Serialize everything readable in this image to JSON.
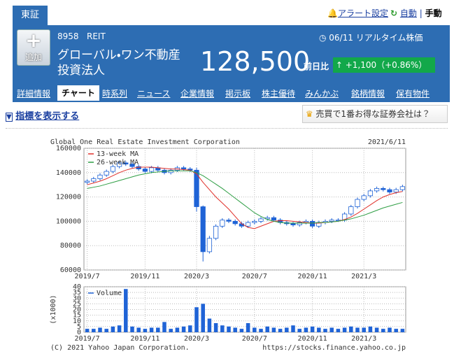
{
  "header": {
    "market": "東証",
    "alert": "アラート設定",
    "auto": "自動",
    "manual": "手動",
    "add": "追加",
    "code": "8958",
    "category": "REIT",
    "time": "06/11 リアルタイム株価",
    "name_line1": "グローバル・ワン不動産",
    "name_line2": "投資法人",
    "price": "128,500",
    "change_label": "前日比",
    "change": "+1,100（+0.86%）"
  },
  "tabs": [
    "詳細情報",
    "チャート",
    "時系列",
    "ニュース",
    "企業情報",
    "掲示板",
    "株主優待",
    "みんかぶ",
    "銘柄情報",
    "保有物件"
  ],
  "toolbar": {
    "indicator_link": "指標を表示する",
    "promo": "売買で1番お得な証券会社は？"
  },
  "footer": {
    "copyright": "(C) 2021 Yahoo Japan Corporation.",
    "url": "https://stocks.finance.yahoo.co.jp"
  },
  "chart_data": [
    {
      "type": "candlestick",
      "title": "Global One Real Estate Investment Corporation",
      "date_label": "2021/6/11",
      "categories": [
        "2019/7",
        null,
        null,
        null,
        null,
        null,
        null,
        null,
        null,
        "2019/11",
        null,
        null,
        null,
        null,
        null,
        null,
        null,
        "2020/3",
        null,
        null,
        null,
        null,
        null,
        null,
        null,
        null,
        "2020/7",
        null,
        null,
        null,
        null,
        null,
        null,
        null,
        null,
        "2020/11",
        null,
        null,
        null,
        null,
        null,
        null,
        null,
        "2021/3",
        null,
        null,
        null,
        null,
        null,
        null
      ],
      "open": [
        132000,
        133000,
        135000,
        138000,
        141000,
        145000,
        148000,
        147000,
        145000,
        143000,
        141000,
        144000,
        142000,
        140000,
        142000,
        144000,
        143000,
        142000,
        112000,
        75000,
        86000,
        96000,
        101000,
        100000,
        98000,
        96000,
        99000,
        100000,
        102000,
        103000,
        101000,
        99000,
        98000,
        97000,
        99000,
        100000,
        96000,
        99000,
        100000,
        101000,
        101000,
        106000,
        112000,
        118000,
        121000,
        125000,
        127000,
        126000,
        124000,
        126000
      ],
      "high": [
        134500,
        136500,
        139500,
        142500,
        146500,
        149500,
        149500,
        148500,
        146500,
        144500,
        145500,
        145500,
        143500,
        143500,
        145500,
        145500,
        144500,
        144000,
        113000,
        88000,
        97500,
        102500,
        102500,
        101500,
        99500,
        100500,
        101500,
        103500,
        104500,
        104500,
        102500,
        100500,
        99500,
        100500,
        101500,
        101500,
        100500,
        101500,
        102500,
        102500,
        107500,
        113500,
        119500,
        122500,
        126500,
        128500,
        128500,
        127500,
        127500,
        130000
      ],
      "low": [
        130500,
        131500,
        133500,
        136500,
        139500,
        143500,
        145500,
        143500,
        141500,
        139500,
        139500,
        140500,
        138500,
        138500,
        140500,
        141500,
        140500,
        108000,
        67000,
        73500,
        84500,
        94500,
        98500,
        96500,
        94500,
        94500,
        97500,
        98500,
        100500,
        99500,
        97500,
        96500,
        95500,
        95500,
        97500,
        94500,
        94500,
        97500,
        98500,
        99500,
        99500,
        104500,
        110500,
        116500,
        119500,
        123500,
        124500,
        122500,
        122500,
        124500
      ],
      "close": [
        133000,
        135000,
        138000,
        141000,
        145000,
        148000,
        147000,
        145000,
        143000,
        141000,
        144000,
        142000,
        140000,
        142000,
        144000,
        143000,
        142000,
        112000,
        75000,
        86000,
        96000,
        101000,
        100000,
        98000,
        96000,
        99000,
        100000,
        102000,
        103000,
        101000,
        99000,
        98000,
        97000,
        99000,
        100000,
        96000,
        99000,
        100000,
        101000,
        101000,
        106000,
        112000,
        118000,
        121000,
        125000,
        127000,
        126000,
        124000,
        126000,
        128500
      ],
      "up_color": "#ffffff",
      "down_color": "#1f63d6",
      "edge_color": "#1f63d6",
      "lines": [
        {
          "name": "13-week MA",
          "color": "#e0302a",
          "values": [
            130000,
            131500,
            133000,
            135000,
            137500,
            140000,
            142000,
            143500,
            144500,
            144500,
            144500,
            144000,
            143500,
            143000,
            143000,
            142500,
            142000,
            139000,
            132000,
            126000,
            120000,
            115000,
            110000,
            104000,
            98000,
            95000,
            94000,
            96000,
            98000,
            100000,
            100500,
            100500,
            100000,
            99500,
            99000,
            98500,
            98500,
            99000,
            99500,
            100000,
            101500,
            103500,
            106500,
            110000,
            113500,
            117000,
            120000,
            122000,
            123500,
            124500
          ]
        },
        {
          "name": "26-week MA",
          "color": "#2e9e44",
          "values": [
            127000,
            128000,
            129000,
            130500,
            132000,
            133500,
            135000,
            136500,
            138000,
            139000,
            140000,
            140500,
            141000,
            141500,
            141500,
            141500,
            141500,
            140000,
            137500,
            134000,
            130500,
            127000,
            123000,
            119000,
            115000,
            111000,
            107000,
            104000,
            101500,
            100000,
            99000,
            98500,
            98500,
            98500,
            98500,
            98500,
            99000,
            99000,
            99500,
            100000,
            101000,
            102000,
            103500,
            105000,
            107000,
            109000,
            111000,
            112500,
            114000,
            115500
          ]
        }
      ],
      "ylim": [
        60000,
        160000
      ],
      "yticks": [
        60000,
        80000,
        100000,
        120000,
        140000,
        160000
      ],
      "grid": true,
      "legend": "upper left"
    },
    {
      "type": "bar",
      "y_label": "(x1000)",
      "categories": [
        "2019/7",
        null,
        null,
        null,
        null,
        null,
        null,
        null,
        null,
        "2019/11",
        null,
        null,
        null,
        null,
        null,
        null,
        null,
        "2020/3",
        null,
        null,
        null,
        null,
        null,
        null,
        null,
        null,
        "2020/7",
        null,
        null,
        null,
        null,
        null,
        null,
        null,
        null,
        "2020/11",
        null,
        null,
        null,
        null,
        null,
        null,
        null,
        "2021/3",
        null,
        null,
        null,
        null,
        null,
        null
      ],
      "series": [
        {
          "name": "Volume",
          "color": "#1f63d6",
          "values": [
            3,
            3,
            4,
            3,
            5,
            6,
            38,
            5,
            4,
            3,
            4,
            4,
            9,
            3,
            4,
            5,
            6,
            22,
            25,
            12,
            8,
            6,
            5,
            4,
            3,
            8,
            4,
            3,
            5,
            4,
            3,
            4,
            6,
            3,
            4,
            5,
            4,
            3,
            4,
            3,
            4,
            5,
            4,
            4,
            5,
            4,
            3,
            4,
            3,
            3
          ]
        }
      ],
      "ylim": [
        0,
        40
      ],
      "yticks": [
        0,
        5,
        10,
        15,
        20,
        25,
        30,
        35,
        40
      ],
      "grid": true,
      "legend": "upper left"
    }
  ]
}
